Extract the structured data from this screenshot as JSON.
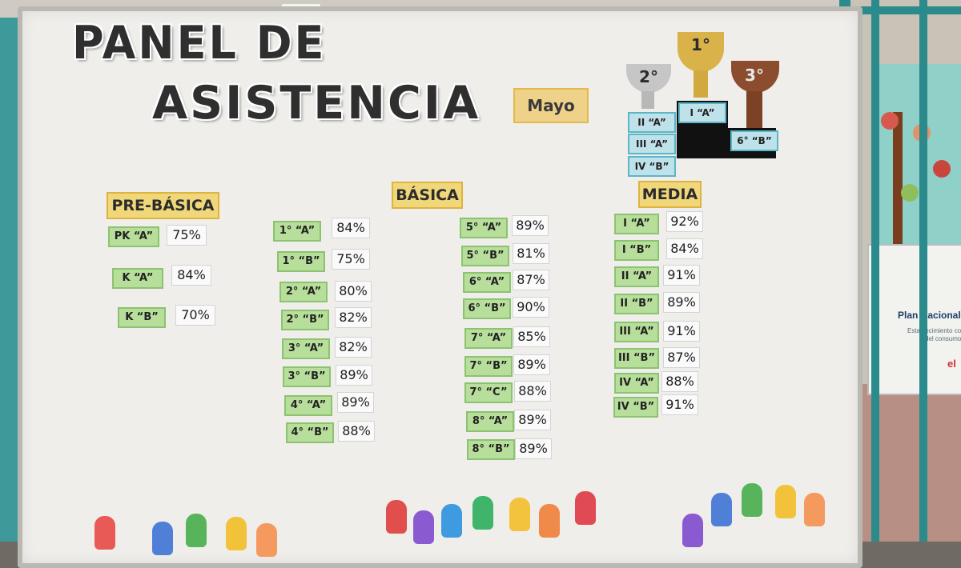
{
  "board": {
    "title_line1": "PANEL DE",
    "title_line2": "ASISTENCIA",
    "month": "Mayo"
  },
  "podium": [
    {
      "place": "2°",
      "courses": [
        "II “A”",
        "III “A”",
        "IV “B”"
      ]
    },
    {
      "place": "1°",
      "courses": [
        "I “A”"
      ]
    },
    {
      "place": "3°",
      "courses": [
        "6° “B”"
      ]
    }
  ],
  "sections": {
    "pre_basica": {
      "heading": "PRE-BÁSICA",
      "rows": [
        {
          "course": "PK “A”",
          "percent": "75%"
        },
        {
          "course": "K “A”",
          "percent": "84%"
        },
        {
          "course": "K “B”",
          "percent": "70%"
        }
      ]
    },
    "basica": {
      "heading": "BÁSICA",
      "rows_left": [
        {
          "course": "1° “A”",
          "percent": "84%"
        },
        {
          "course": "1° “B”",
          "percent": "75%"
        },
        {
          "course": "2° “A”",
          "percent": "80%"
        },
        {
          "course": "2° “B”",
          "percent": "82%"
        },
        {
          "course": "3° “A”",
          "percent": "82%"
        },
        {
          "course": "3° “B”",
          "percent": "89%"
        },
        {
          "course": "4° “A”",
          "percent": "89%"
        },
        {
          "course": "4° “B”",
          "percent": "88%"
        }
      ],
      "rows_right": [
        {
          "course": "5° “A”",
          "percent": "89%"
        },
        {
          "course": "5° “B”",
          "percent": "81%"
        },
        {
          "course": "6° “A”",
          "percent": "87%"
        },
        {
          "course": "6° “B”",
          "percent": "90%"
        },
        {
          "course": "7° “A”",
          "percent": "85%"
        },
        {
          "course": "7° “B”",
          "percent": "89%"
        },
        {
          "course": "7° “C”",
          "percent": "88%"
        },
        {
          "course": "8° “A”",
          "percent": "89%"
        },
        {
          "course": "8° “B”",
          "percent": "89%"
        }
      ]
    },
    "media": {
      "heading": "MEDIA",
      "rows": [
        {
          "course": "I “A”",
          "percent": "92%"
        },
        {
          "course": "I “B”",
          "percent": "84%"
        },
        {
          "course": "II “A”",
          "percent": "91%"
        },
        {
          "course": "II “B”",
          "percent": "89%"
        },
        {
          "course": "III “A”",
          "percent": "91%"
        },
        {
          "course": "III “B”",
          "percent": "87%"
        },
        {
          "course": "IV “A”",
          "percent": "88%"
        },
        {
          "course": "IV “B”",
          "percent": "91%"
        }
      ]
    }
  },
  "sign": {
    "title": "Plan Nacional",
    "line1": "Establecimiento com",
    "line2": "del consumo d",
    "logo": "el"
  },
  "colors": {
    "label_green": "#b7de9b",
    "heading_yellow": "#f0d77a",
    "podium_blue": "#bfe2ea",
    "frame_teal": "#2a8a8c"
  }
}
